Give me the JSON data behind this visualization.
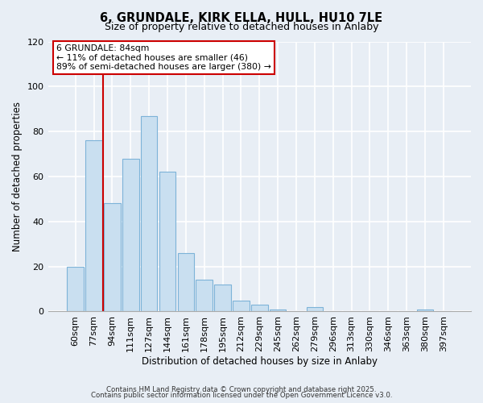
{
  "title": "6, GRUNDALE, KIRK ELLA, HULL, HU10 7LE",
  "subtitle": "Size of property relative to detached houses in Anlaby",
  "xlabel": "Distribution of detached houses by size in Anlaby",
  "ylabel": "Number of detached properties",
  "bar_labels": [
    "60sqm",
    "77sqm",
    "94sqm",
    "111sqm",
    "127sqm",
    "144sqm",
    "161sqm",
    "178sqm",
    "195sqm",
    "212sqm",
    "229sqm",
    "245sqm",
    "262sqm",
    "279sqm",
    "296sqm",
    "313sqm",
    "330sqm",
    "346sqm",
    "363sqm",
    "380sqm",
    "397sqm"
  ],
  "bar_values": [
    20,
    76,
    48,
    68,
    87,
    62,
    26,
    14,
    12,
    5,
    3,
    1,
    0,
    2,
    0,
    0,
    0,
    0,
    0,
    1,
    0
  ],
  "bar_color": "#c9dff0",
  "bar_edge_color": "#7db3d8",
  "ylim": [
    0,
    120
  ],
  "yticks": [
    0,
    20,
    40,
    60,
    80,
    100,
    120
  ],
  "vline_color": "#cc0000",
  "annotation_title": "6 GRUNDALE: 84sqm",
  "annotation_line1": "← 11% of detached houses are smaller (46)",
  "annotation_line2": "89% of semi-detached houses are larger (380) →",
  "annotation_box_color": "#ffffff",
  "annotation_box_edge": "#cc0000",
  "footer1": "Contains HM Land Registry data © Crown copyright and database right 2025.",
  "footer2": "Contains public sector information licensed under the Open Government Licence v3.0.",
  "background_color": "#e8eef5",
  "plot_bg_color": "#e8eef5"
}
